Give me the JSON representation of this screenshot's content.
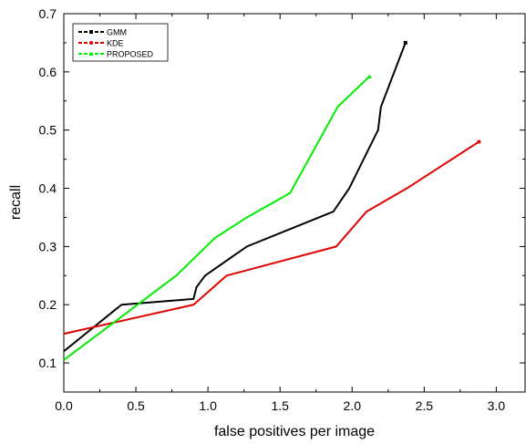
{
  "chart_data": {
    "type": "line",
    "xlabel": "false positives per image",
    "ylabel": "recall",
    "xlim": [
      0.0,
      3.2
    ],
    "ylim": [
      0.05,
      0.7
    ],
    "x_ticks": [
      "0.0",
      "0.5",
      "1.0",
      "1.5",
      "2.0",
      "2.5",
      "3.0"
    ],
    "y_ticks": [
      "0.1",
      "0.2",
      "0.3",
      "0.4",
      "0.5",
      "0.6",
      "0.7"
    ],
    "legend_position": "top-left",
    "grid": false,
    "series": [
      {
        "name": "GMM",
        "color": "#000000",
        "x": [
          0.0,
          0.4,
          0.9,
          0.92,
          0.98,
          1.27,
          1.87,
          1.98,
          2.1,
          2.18,
          2.2,
          2.37
        ],
        "y": [
          0.12,
          0.2,
          0.21,
          0.23,
          0.25,
          0.3,
          0.36,
          0.4,
          0.46,
          0.5,
          0.54,
          0.65
        ]
      },
      {
        "name": "KDE",
        "color": "#e00000",
        "x": [
          0.0,
          0.9,
          1.13,
          1.89,
          2.1,
          2.38,
          2.88
        ],
        "y": [
          0.15,
          0.2,
          0.25,
          0.3,
          0.36,
          0.4,
          0.48
        ]
      },
      {
        "name": "PROPOSED",
        "color": "#00ee00",
        "x": [
          0.0,
          0.78,
          1.05,
          1.27,
          1.57,
          1.9,
          2.12
        ],
        "y": [
          0.105,
          0.25,
          0.315,
          0.35,
          0.392,
          0.54,
          0.592
        ]
      }
    ]
  }
}
